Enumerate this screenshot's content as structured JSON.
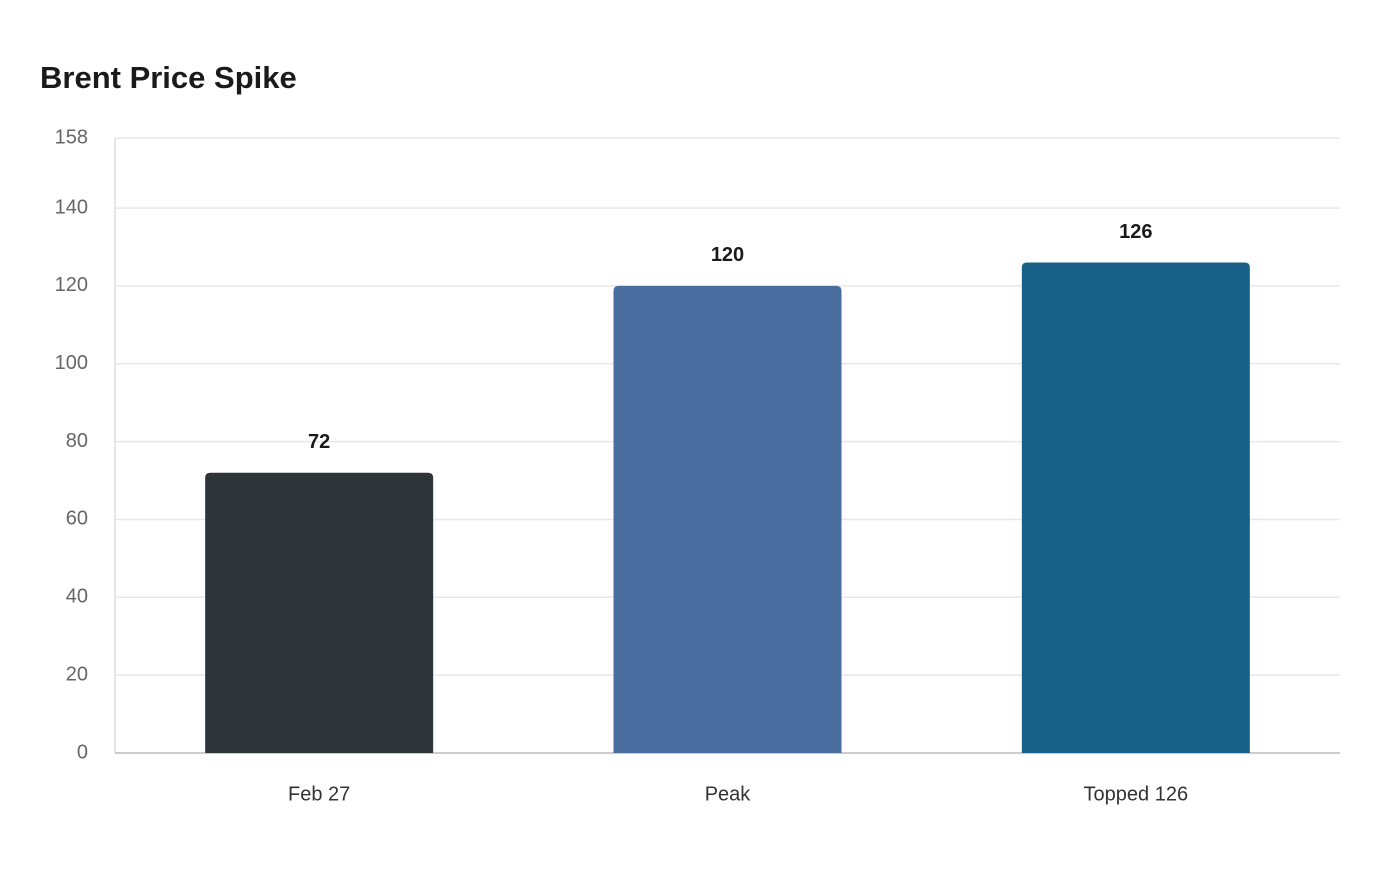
{
  "chart_data": {
    "type": "bar",
    "title": "Brent Price Spike",
    "categories": [
      "Feb 27",
      "Peak",
      "Topped 126"
    ],
    "values": [
      72,
      120,
      126
    ],
    "colors": [
      "#2e3538",
      "#4a6da0",
      "#176087"
    ],
    "ylim": [
      0,
      158
    ],
    "yticks": [
      0,
      20,
      40,
      60,
      80,
      100,
      120,
      140,
      158
    ],
    "grid": true
  }
}
